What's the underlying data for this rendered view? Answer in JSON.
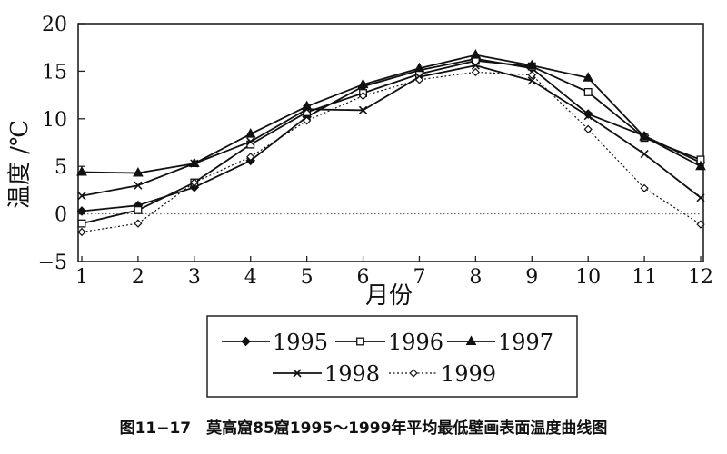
{
  "chart_data": {
    "type": "line",
    "title": "",
    "xlabel": "月份",
    "ylabel": "温度 /℃",
    "x": [
      1,
      2,
      3,
      4,
      5,
      6,
      7,
      8,
      9,
      10,
      11,
      12
    ],
    "xlim": [
      1,
      12
    ],
    "ylim": [
      -5,
      20
    ],
    "yticks": [
      -5,
      0,
      5,
      10,
      15,
      20
    ],
    "grid": false,
    "zero_line": "dotted",
    "legend_position": "bottom",
    "series": [
      {
        "name": "1995",
        "marker": "diamond-filled",
        "line": "solid",
        "values": [
          0.3,
          0.9,
          2.8,
          5.6,
          10.2,
          13.4,
          15.1,
          16.3,
          15.3,
          10.5,
          8.2,
          5.4
        ]
      },
      {
        "name": "1996",
        "marker": "square-open",
        "line": "solid",
        "values": [
          -1.0,
          0.4,
          3.3,
          7.3,
          10.7,
          12.7,
          14.7,
          16.1,
          15.5,
          12.8,
          8.0,
          5.7
        ]
      },
      {
        "name": "1997",
        "marker": "triangle-filled",
        "line": "solid",
        "values": [
          4.4,
          4.3,
          5.3,
          8.4,
          11.3,
          13.6,
          15.3,
          16.7,
          15.6,
          14.3,
          8.1,
          5.0
        ]
      },
      {
        "name": "1998",
        "marker": "x",
        "line": "solid",
        "values": [
          1.9,
          3.0,
          5.3,
          7.6,
          11.0,
          10.9,
          14.4,
          15.6,
          14.0,
          10.3,
          6.3,
          1.7
        ]
      },
      {
        "name": "1999",
        "marker": "diamond-open",
        "line": "dotted",
        "values": [
          -1.9,
          -1.0,
          3.3,
          6.0,
          9.8,
          12.4,
          14.1,
          14.9,
          14.6,
          8.9,
          2.7,
          -1.1
        ]
      }
    ]
  },
  "caption": "图11−17　莫高窟85窟1995～1999年平均最低壁画表面温度曲线图"
}
